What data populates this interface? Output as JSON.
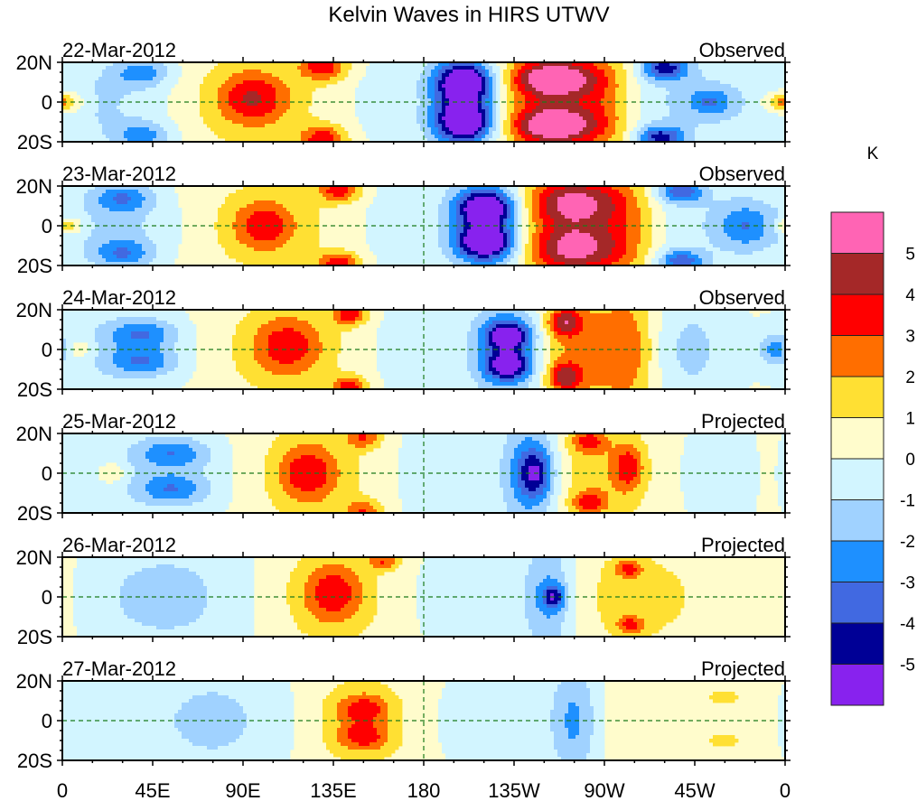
{
  "chart_data": {
    "type": "heatmap",
    "title": "Kelvin Waves in HIRS UTWV",
    "units_label": "K",
    "xlabel": "",
    "ylabel": "",
    "x_range": [
      0,
      360
    ],
    "y_range": [
      -20,
      20
    ],
    "x_ticks": [
      {
        "value": 0,
        "label": "0"
      },
      {
        "value": 45,
        "label": "45E"
      },
      {
        "value": 90,
        "label": "90E"
      },
      {
        "value": 135,
        "label": "135E"
      },
      {
        "value": 180,
        "label": "180"
      },
      {
        "value": 225,
        "label": "135W"
      },
      {
        "value": 270,
        "label": "90W"
      },
      {
        "value": 315,
        "label": "45W"
      },
      {
        "value": 360,
        "label": "0"
      }
    ],
    "y_ticks": [
      {
        "value": 20,
        "label": "20N"
      },
      {
        "value": 0,
        "label": "0"
      },
      {
        "value": -20,
        "label": "20S"
      }
    ],
    "equator_line": true,
    "dateline_line": true,
    "colorbar": {
      "levels": [
        -5,
        -4,
        -3,
        -2,
        -1,
        0,
        1,
        2,
        3,
        4,
        5
      ],
      "colors": [
        "#8822ee",
        "#000096",
        "#4169e1",
        "#1e90ff",
        "#a0d2ff",
        "#d2f5ff",
        "#fffccc",
        "#ffe033",
        "#ff6e00",
        "#ff0000",
        "#a52828",
        "#ff64b4"
      ],
      "tick_labels": [
        "-5",
        "-4",
        "-3",
        "-2",
        "-1",
        "0",
        "1",
        "2",
        "3",
        "4",
        "5"
      ],
      "placement": "right"
    },
    "panels": [
      {
        "date": "22-Mar-2012",
        "status": "Observed",
        "features": [
          {
            "lon": 200,
            "lat": 10,
            "wlon": 10,
            "wlat": 7,
            "amp": -5.6
          },
          {
            "lon": 200,
            "lat": -10,
            "wlon": 10,
            "wlat": 7,
            "amp": -5.6
          },
          {
            "lon": 200,
            "lat": 0,
            "wlon": 12,
            "wlat": 18,
            "amp": -2.6
          },
          {
            "lon": 245,
            "lat": 12,
            "wlon": 14,
            "wlat": 6,
            "amp": 4.4
          },
          {
            "lon": 245,
            "lat": -12,
            "wlon": 14,
            "wlat": 6,
            "amp": 4.4
          },
          {
            "lon": 247,
            "lat": 0,
            "wlon": 20,
            "wlat": 22,
            "amp": 3.2
          },
          {
            "lon": 272,
            "lat": 0,
            "wlon": 10,
            "wlat": 22,
            "amp": 1.4
          },
          {
            "lon": 95,
            "lat": 2,
            "wlon": 12,
            "wlat": 9,
            "amp": 2.8
          },
          {
            "lon": 95,
            "lat": 0,
            "wlon": 30,
            "wlat": 22,
            "amp": 1.3
          },
          {
            "lon": 130,
            "lat": 18,
            "wlon": 8,
            "wlat": 5,
            "amp": 3.5
          },
          {
            "lon": 130,
            "lat": -19,
            "wlon": 8,
            "wlat": 5,
            "amp": 3.5
          },
          {
            "lon": 40,
            "lat": 15,
            "wlon": 10,
            "wlat": 5,
            "amp": -2.5
          },
          {
            "lon": 40,
            "lat": -17,
            "wlon": 10,
            "wlat": 5,
            "amp": -2.5
          },
          {
            "lon": 20,
            "lat": 0,
            "wlon": 25,
            "wlat": 16,
            "amp": -1.3
          },
          {
            "lon": 160,
            "lat": 0,
            "wlon": 22,
            "wlat": 20,
            "amp": -0.6
          },
          {
            "lon": 300,
            "lat": 17,
            "wlon": 8,
            "wlat": 4,
            "amp": -4.2
          },
          {
            "lon": 298,
            "lat": -18,
            "wlon": 8,
            "wlat": 4,
            "amp": -4.2
          },
          {
            "lon": 305,
            "lat": 0,
            "wlon": 28,
            "wlat": 20,
            "amp": -1.2
          },
          {
            "lon": 323,
            "lat": 0,
            "wlon": 8,
            "wlat": 5,
            "amp": -2.3
          },
          {
            "lon": 357,
            "lat": 0,
            "wlon": 6,
            "wlat": 4,
            "amp": 2.4
          },
          {
            "lon": 5,
            "lat": 0,
            "wlon": 6,
            "wlat": 4,
            "amp": 1.4
          }
        ]
      },
      {
        "date": "23-Mar-2012",
        "status": "Observed",
        "features": [
          {
            "lon": 211,
            "lat": 9,
            "wlon": 10,
            "wlat": 6,
            "amp": -5.4
          },
          {
            "lon": 211,
            "lat": -8,
            "wlon": 10,
            "wlat": 6,
            "amp": -5.4
          },
          {
            "lon": 211,
            "lat": 0,
            "wlon": 13,
            "wlat": 20,
            "amp": -2.8
          },
          {
            "lon": 255,
            "lat": 12,
            "wlon": 16,
            "wlat": 8,
            "amp": 3.4
          },
          {
            "lon": 255,
            "lat": -12,
            "wlon": 16,
            "wlat": 8,
            "amp": 3.4
          },
          {
            "lon": 257,
            "lat": 0,
            "wlon": 22,
            "wlat": 22,
            "amp": 2.6
          },
          {
            "lon": 282,
            "lat": 0,
            "wlon": 10,
            "wlat": 20,
            "amp": 1.2
          },
          {
            "lon": 100,
            "lat": 0,
            "wlon": 10,
            "wlat": 8,
            "amp": 2.6
          },
          {
            "lon": 105,
            "lat": 0,
            "wlon": 30,
            "wlat": 22,
            "amp": 1.3
          },
          {
            "lon": 138,
            "lat": 18,
            "wlon": 7,
            "wlat": 4,
            "amp": 3.4
          },
          {
            "lon": 138,
            "lat": -19,
            "wlon": 7,
            "wlat": 4,
            "amp": 3.4
          },
          {
            "lon": 30,
            "lat": 14,
            "wlon": 10,
            "wlat": 5,
            "amp": -2.5
          },
          {
            "lon": 30,
            "lat": -14,
            "wlon": 10,
            "wlat": 5,
            "amp": -2.5
          },
          {
            "lon": 30,
            "lat": 0,
            "wlon": 22,
            "wlat": 16,
            "amp": -1.3
          },
          {
            "lon": 165,
            "lat": 0,
            "wlon": 22,
            "wlat": 20,
            "amp": -0.7
          },
          {
            "lon": 308,
            "lat": 17,
            "wlon": 8,
            "wlat": 4,
            "amp": -3.6
          },
          {
            "lon": 308,
            "lat": -18,
            "wlon": 8,
            "wlat": 4,
            "amp": -3.6
          },
          {
            "lon": 340,
            "lat": 0,
            "wlon": 10,
            "wlat": 8,
            "amp": -2.4
          },
          {
            "lon": 320,
            "lat": 0,
            "wlon": 30,
            "wlat": 20,
            "amp": -0.9
          },
          {
            "lon": 3,
            "lat": 0,
            "wlon": 5,
            "wlat": 3,
            "amp": 2.5
          }
        ]
      },
      {
        "date": "24-Mar-2012",
        "status": "Observed",
        "features": [
          {
            "lon": 222,
            "lat": 7,
            "wlon": 8,
            "wlat": 5,
            "amp": -4.6
          },
          {
            "lon": 222,
            "lat": -8,
            "wlon": 8,
            "wlat": 5,
            "amp": -4.6
          },
          {
            "lon": 222,
            "lat": 0,
            "wlon": 13,
            "wlat": 22,
            "amp": -2.8
          },
          {
            "lon": 262,
            "lat": 0,
            "wlon": 20,
            "wlat": 22,
            "amp": 2.4
          },
          {
            "lon": 250,
            "lat": 14,
            "wlon": 6,
            "wlat": 5,
            "amp": 3.4
          },
          {
            "lon": 250,
            "lat": -14,
            "wlon": 6,
            "wlat": 5,
            "amp": 3.4
          },
          {
            "lon": 283,
            "lat": 0,
            "wlon": 8,
            "wlat": 22,
            "amp": 1.4
          },
          {
            "lon": 112,
            "lat": 2,
            "wlon": 12,
            "wlat": 10,
            "amp": 2.4
          },
          {
            "lon": 112,
            "lat": 0,
            "wlon": 26,
            "wlat": 22,
            "amp": 1.3
          },
          {
            "lon": 143,
            "lat": 18,
            "wlon": 6,
            "wlat": 4,
            "amp": 3.4
          },
          {
            "lon": 143,
            "lat": -19,
            "wlon": 6,
            "wlat": 4,
            "amp": 3.4
          },
          {
            "lon": 40,
            "lat": 8,
            "wlon": 12,
            "wlat": 5,
            "amp": -2.3
          },
          {
            "lon": 40,
            "lat": -6,
            "wlon": 12,
            "wlat": 5,
            "amp": -2.3
          },
          {
            "lon": 30,
            "lat": 0,
            "wlon": 22,
            "wlat": 16,
            "amp": -1.2
          },
          {
            "lon": 170,
            "lat": 0,
            "wlon": 20,
            "wlat": 20,
            "amp": -0.6
          },
          {
            "lon": 312,
            "lat": 0,
            "wlon": 14,
            "wlat": 20,
            "amp": -1.5
          },
          {
            "lon": 355,
            "lat": 0,
            "wlon": 6,
            "wlat": 5,
            "amp": -2.4
          },
          {
            "lon": 8,
            "lat": 0,
            "wlon": 5,
            "wlat": 4,
            "amp": 1.4
          }
        ]
      },
      {
        "date": "25-Mar-2012",
        "status": "Projected",
        "features": [
          {
            "lon": 232,
            "lat": 0,
            "wlon": 10,
            "wlat": 22,
            "amp": -2.6
          },
          {
            "lon": 236,
            "lat": 0,
            "wlon": 6,
            "wlat": 9,
            "amp": -3.4
          },
          {
            "lon": 270,
            "lat": 0,
            "wlon": 20,
            "wlat": 22,
            "amp": 1.6
          },
          {
            "lon": 282,
            "lat": 3,
            "wlon": 5,
            "wlat": 8,
            "amp": 2.6
          },
          {
            "lon": 262,
            "lat": 16,
            "wlon": 6,
            "wlat": 4,
            "amp": 2.6
          },
          {
            "lon": 262,
            "lat": -15,
            "wlon": 6,
            "wlat": 4,
            "amp": 2.6
          },
          {
            "lon": 122,
            "lat": 0,
            "wlon": 10,
            "wlat": 10,
            "amp": 2.6
          },
          {
            "lon": 125,
            "lat": 0,
            "wlon": 25,
            "wlat": 22,
            "amp": 1.3
          },
          {
            "lon": 150,
            "lat": 18,
            "wlon": 6,
            "wlat": 4,
            "amp": 2.6
          },
          {
            "lon": 150,
            "lat": -19,
            "wlon": 6,
            "wlat": 4,
            "amp": 2.6
          },
          {
            "lon": 55,
            "lat": 10,
            "wlon": 12,
            "wlat": 5,
            "amp": -2.2
          },
          {
            "lon": 55,
            "lat": -8,
            "wlon": 12,
            "wlat": 5,
            "amp": -2.2
          },
          {
            "lon": 50,
            "lat": 0,
            "wlon": 25,
            "wlat": 18,
            "amp": -1.2
          },
          {
            "lon": 25,
            "lat": 0,
            "wlon": 5,
            "wlat": 4,
            "amp": 1.4
          },
          {
            "lon": 185,
            "lat": 0,
            "wlon": 20,
            "wlat": 20,
            "amp": -0.7
          },
          {
            "lon": 330,
            "lat": 0,
            "wlon": 25,
            "wlat": 20,
            "amp": -0.6
          },
          {
            "lon": 350,
            "lat": 0,
            "wlon": 8,
            "wlat": 18,
            "amp": 0.4
          }
        ]
      },
      {
        "date": "26-Mar-2012",
        "status": "Projected",
        "features": [
          {
            "lon": 242,
            "lat": 0,
            "wlon": 9,
            "wlat": 22,
            "amp": -2.5
          },
          {
            "lon": 245,
            "lat": 0,
            "wlon": 4,
            "wlat": 4,
            "amp": -3.2
          },
          {
            "lon": 285,
            "lat": 0,
            "wlon": 25,
            "wlat": 22,
            "amp": 1.2
          },
          {
            "lon": 282,
            "lat": 14,
            "wlon": 5,
            "wlat": 3,
            "amp": 2.5
          },
          {
            "lon": 283,
            "lat": -14,
            "wlon": 5,
            "wlat": 3,
            "amp": 2.5
          },
          {
            "lon": 135,
            "lat": 2,
            "wlon": 10,
            "wlat": 10,
            "amp": 2.5
          },
          {
            "lon": 133,
            "lat": 0,
            "wlon": 22,
            "wlat": 22,
            "amp": 1.3
          },
          {
            "lon": 160,
            "lat": 18,
            "wlon": 6,
            "wlat": 3,
            "amp": 2.5
          },
          {
            "lon": 60,
            "lat": 0,
            "wlon": 25,
            "wlat": 22,
            "amp": -1.3
          },
          {
            "lon": 200,
            "lat": 0,
            "wlon": 18,
            "wlat": 18,
            "amp": -0.8
          },
          {
            "lon": 30,
            "lat": 0,
            "wlon": 18,
            "wlat": 18,
            "amp": -0.6
          },
          {
            "lon": 340,
            "lat": 0,
            "wlon": 20,
            "wlat": 20,
            "amp": 0.4
          }
        ]
      },
      {
        "date": "27-Mar-2012",
        "status": "Projected",
        "features": [
          {
            "lon": 255,
            "lat": 0,
            "wlon": 8,
            "wlat": 22,
            "amp": -2.3
          },
          {
            "lon": 150,
            "lat": 6,
            "wlon": 9,
            "wlat": 5,
            "amp": 2.4
          },
          {
            "lon": 150,
            "lat": -8,
            "wlon": 9,
            "wlat": 5,
            "amp": 2.4
          },
          {
            "lon": 148,
            "lat": 0,
            "wlon": 20,
            "wlat": 22,
            "amp": 1.4
          },
          {
            "lon": 75,
            "lat": 0,
            "wlon": 28,
            "wlat": 22,
            "amp": -1.4
          },
          {
            "lon": 215,
            "lat": 0,
            "wlon": 22,
            "wlat": 18,
            "amp": -0.8
          },
          {
            "lon": 300,
            "lat": 0,
            "wlon": 25,
            "wlat": 20,
            "amp": 0.4
          },
          {
            "lon": 330,
            "lat": 12,
            "wlon": 6,
            "wlat": 3,
            "amp": 1.3
          },
          {
            "lon": 330,
            "lat": -10,
            "wlon": 6,
            "wlat": 3,
            "amp": 1.3
          },
          {
            "lon": 20,
            "lat": 0,
            "wlon": 15,
            "wlat": 18,
            "amp": -0.6
          }
        ]
      }
    ]
  }
}
